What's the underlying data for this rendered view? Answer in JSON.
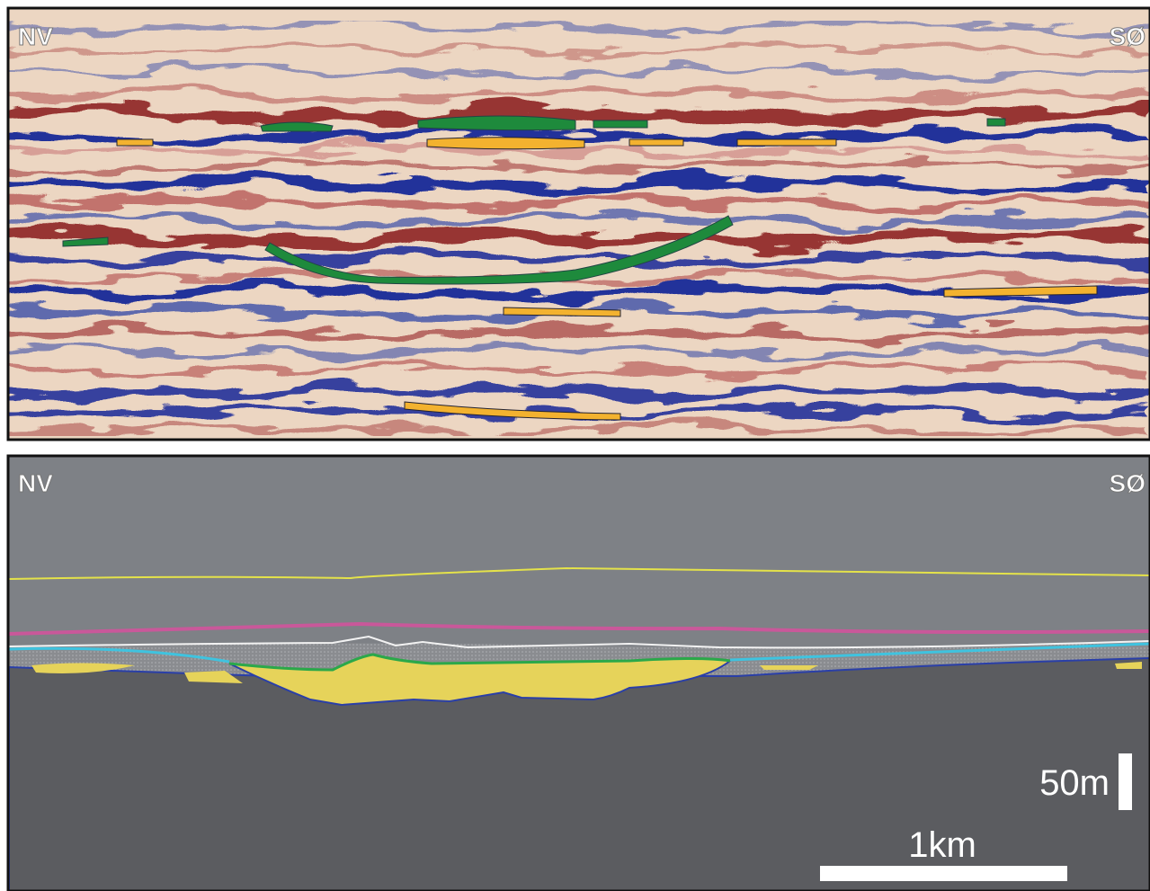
{
  "seismic_panel": {
    "left_label": "NV",
    "right_label": "SØ"
  },
  "interpretation_panel": {
    "left_label": "NV",
    "right_label": "SØ",
    "scale_vertical": "50m",
    "scale_horizontal": "1km"
  }
}
